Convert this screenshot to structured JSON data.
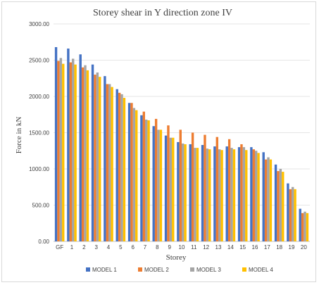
{
  "chart_data": {
    "type": "bar",
    "title": "Storey shear in Y direction zone IV",
    "xlabel": "Storey",
    "ylabel": "Force in kN",
    "ylim": [
      0,
      3000
    ],
    "yticks": [
      "0.00",
      "500.00",
      "1000.00",
      "1500.00",
      "2000.00",
      "2500.00",
      "3000.00"
    ],
    "grid": true,
    "legend_position": "bottom",
    "categories": [
      "GF",
      "1",
      "2",
      "3",
      "4",
      "5",
      "6",
      "7",
      "8",
      "9",
      "10",
      "11",
      "12",
      "13",
      "14",
      "15",
      "16",
      "17",
      "18",
      "19",
      "20"
    ],
    "series": [
      {
        "name": "MODEL 1",
        "color": "#4472C4",
        "values": [
          2680,
          2660,
          2580,
          2440,
          2280,
          2100,
          1910,
          1740,
          1590,
          1460,
          1370,
          1340,
          1330,
          1310,
          1310,
          1300,
          1300,
          1230,
          1060,
          800,
          450
        ]
      },
      {
        "name": "MODEL 2",
        "color": "#ED7D31",
        "values": [
          2490,
          2470,
          2400,
          2300,
          2170,
          2050,
          1910,
          1790,
          1690,
          1600,
          1540,
          1500,
          1470,
          1440,
          1410,
          1340,
          1270,
          1130,
          970,
          720,
          390
        ]
      },
      {
        "name": "MODEL 3",
        "color": "#A5A5A5",
        "values": [
          2530,
          2520,
          2430,
          2330,
          2170,
          2030,
          1840,
          1680,
          1540,
          1430,
          1350,
          1290,
          1280,
          1270,
          1290,
          1300,
          1250,
          1160,
          1000,
          750,
          410
        ]
      },
      {
        "name": "MODEL 4",
        "color": "#FFC000",
        "values": [
          2450,
          2440,
          2360,
          2270,
          2130,
          1980,
          1810,
          1670,
          1540,
          1430,
          1340,
          1290,
          1270,
          1260,
          1270,
          1260,
          1220,
          1130,
          960,
          720,
          390
        ]
      }
    ]
  }
}
